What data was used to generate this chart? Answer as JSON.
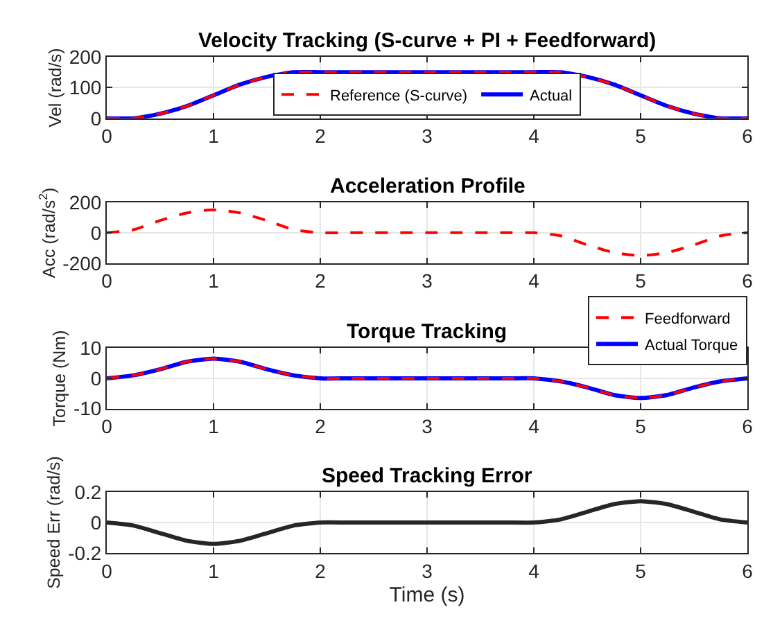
{
  "chart_data": [
    {
      "type": "line",
      "title": "Velocity Tracking (S-curve + PI + Feedforward)",
      "ylabel": "Vel (rad/s)",
      "x": [
        0,
        0.25,
        0.5,
        0.75,
        1,
        1.25,
        1.5,
        1.75,
        2,
        2.25,
        2.5,
        2.75,
        3,
        3.25,
        3.5,
        3.75,
        4,
        4.25,
        4.5,
        4.75,
        5,
        5.25,
        5.5,
        5.75,
        6
      ],
      "series": [
        {
          "name": "Reference (S-curve)",
          "color": "#ff0000",
          "line_style": "dashed",
          "values": [
            0,
            0,
            15,
            40,
            75,
            110,
            135,
            150,
            150,
            150,
            150,
            150,
            150,
            150,
            150,
            150,
            150,
            150,
            135,
            110,
            75,
            40,
            15,
            0,
            0
          ]
        },
        {
          "name": "Actual",
          "color": "#0000ff",
          "line_style": "solid",
          "values": [
            0,
            0,
            15,
            40,
            75,
            110,
            135,
            150,
            150,
            150,
            150,
            150,
            150,
            150,
            150,
            150,
            150,
            150,
            135,
            110,
            75,
            40,
            15,
            0,
            0
          ]
        }
      ],
      "xlim": [
        0,
        6
      ],
      "xticks": [
        0,
        1,
        2,
        3,
        4,
        5,
        6
      ],
      "ylim": [
        0,
        200
      ],
      "yticks": [
        0,
        100,
        200
      ],
      "grid": true,
      "legend": "bottom"
    },
    {
      "type": "line",
      "title": "Acceleration Profile",
      "ylabel": "Acc (rad/s$^{2}$)",
      "x": [
        0,
        0.25,
        0.5,
        0.75,
        1,
        1.25,
        1.5,
        1.75,
        2,
        2.25,
        2.5,
        2.75,
        3,
        3.25,
        3.5,
        3.75,
        4,
        4.25,
        4.5,
        4.75,
        5,
        5.25,
        5.5,
        5.75,
        6
      ],
      "series": [
        {
          "color": "#ff0000",
          "line_style": "dashed",
          "values": [
            0,
            20,
            80,
            130,
            150,
            130,
            80,
            20,
            0,
            0,
            0,
            0,
            0,
            0,
            0,
            0,
            0,
            -20,
            -80,
            -130,
            -150,
            -130,
            -80,
            -20,
            0
          ]
        }
      ],
      "xlim": [
        0,
        6
      ],
      "xticks": [
        0,
        1,
        2,
        3,
        4,
        5,
        6
      ],
      "ylim": [
        -200,
        200
      ],
      "yticks": [
        -200,
        0,
        200
      ],
      "grid": true
    },
    {
      "type": "line",
      "title": "Torque Tracking",
      "ylabel": "Torque (Nm)",
      "x": [
        0,
        0.25,
        0.5,
        0.75,
        1,
        1.25,
        1.5,
        1.75,
        2,
        2.25,
        2.5,
        2.75,
        3,
        3.25,
        3.5,
        3.75,
        4,
        4.25,
        4.5,
        4.75,
        5,
        5.25,
        5.5,
        5.75,
        6
      ],
      "series": [
        {
          "name": "Feedforward",
          "color": "#ff0000",
          "line_style": "dashed",
          "values": [
            0,
            1,
            3,
            5.5,
            6.5,
            5.5,
            3,
            1,
            0,
            0,
            0,
            0,
            0,
            0,
            0,
            0,
            0,
            -1,
            -3,
            -5.5,
            -6.5,
            -5.5,
            -3,
            -1,
            0
          ]
        },
        {
          "name": "Actual Torque",
          "color": "#0000ff",
          "line_style": "solid",
          "values": [
            0,
            1,
            3,
            5.5,
            6.5,
            5.5,
            3,
            1,
            0,
            0,
            0,
            0,
            0,
            0,
            0,
            0,
            0,
            -1,
            -3,
            -5.5,
            -6.5,
            -5.5,
            -3,
            -1,
            0
          ]
        }
      ],
      "xlim": [
        0,
        6
      ],
      "xticks": [
        0,
        1,
        2,
        3,
        4,
        5,
        6
      ],
      "ylim": [
        -10,
        10
      ],
      "yticks": [
        -10,
        0,
        10
      ],
      "grid": true,
      "legend": "top right"
    },
    {
      "type": "line",
      "title": "Speed Tracking Error",
      "xlabel": "Time (s)",
      "ylabel": "Speed Err (rad/s)",
      "x": [
        0,
        0.25,
        0.5,
        0.75,
        1,
        1.25,
        1.5,
        1.75,
        2,
        2.25,
        2.5,
        2.75,
        3,
        3.25,
        3.5,
        3.75,
        4,
        4.25,
        4.5,
        4.75,
        5,
        5.25,
        5.5,
        5.75,
        6
      ],
      "series": [
        {
          "color": "#262626",
          "line_style": "solid",
          "values": [
            0,
            -0.02,
            -0.07,
            -0.12,
            -0.14,
            -0.12,
            -0.07,
            -0.02,
            0,
            0,
            0,
            0,
            0,
            0,
            0,
            0,
            0,
            0.02,
            0.07,
            0.12,
            0.14,
            0.12,
            0.07,
            0.02,
            0
          ]
        }
      ],
      "xlim": [
        0,
        6
      ],
      "xticks": [
        0,
        1,
        2,
        3,
        4,
        5,
        6
      ],
      "ylim": [
        -0.2,
        0.2
      ],
      "yticks": [
        -0.2,
        0,
        0.2
      ],
      "grid": true
    }
  ]
}
